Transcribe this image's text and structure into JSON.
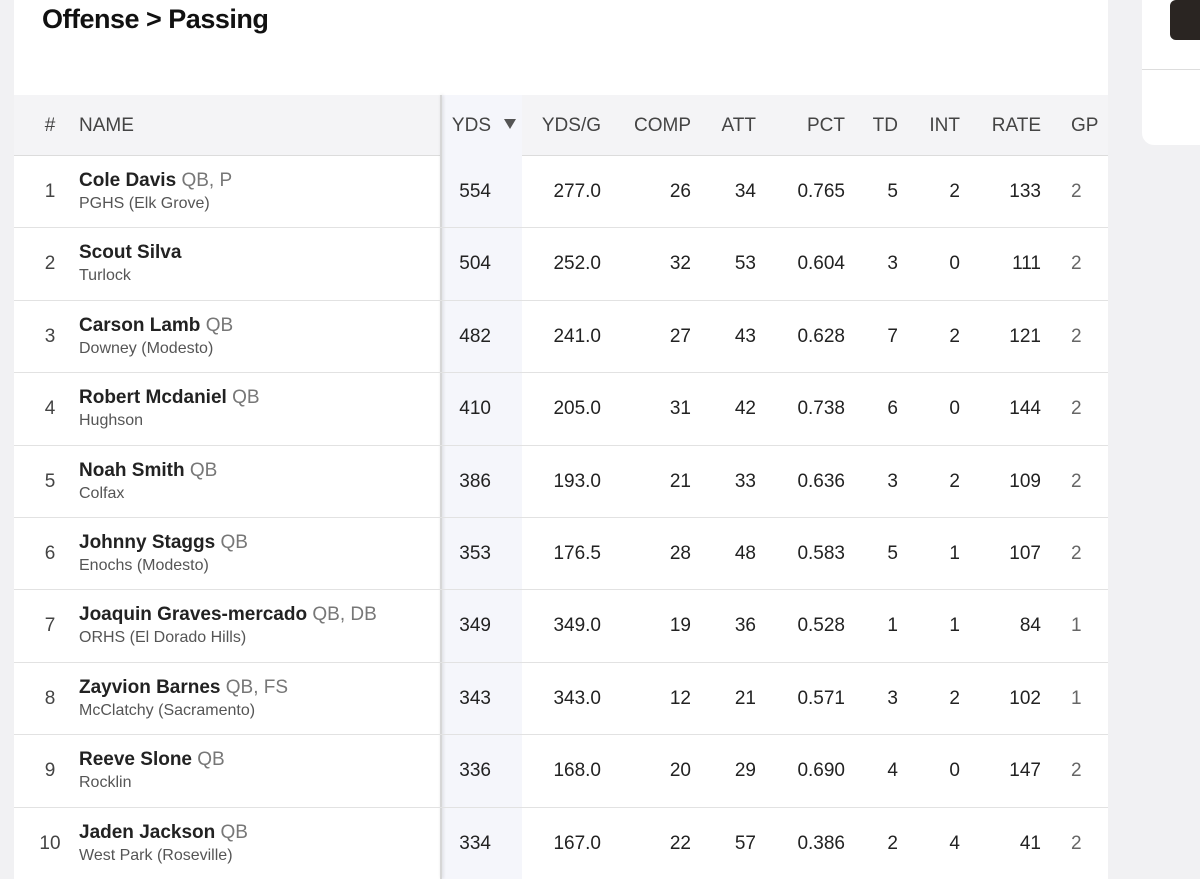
{
  "header": {
    "title": "Offense > Passing"
  },
  "table": {
    "columns": [
      "#",
      "NAME",
      "YDS",
      "YDS/G",
      "COMP",
      "ATT",
      "PCT",
      "TD",
      "INT",
      "RATE",
      "GP"
    ],
    "rows": [
      {
        "rank": 1,
        "name": "Cole Davis",
        "position": "QB, P",
        "school": "PGHS (Elk Grove)",
        "stats": [
          554,
          "277.0",
          26,
          34,
          "0.765",
          5,
          2,
          133,
          2
        ]
      },
      {
        "rank": 2,
        "name": "Scout Silva",
        "school": "Turlock",
        "stats": [
          504,
          "252.0",
          32,
          53,
          "0.604",
          3,
          0,
          111,
          2
        ]
      },
      {
        "rank": 3,
        "name": "Carson Lamb",
        "position": "QB",
        "school": "Downey (Modesto)",
        "stats": [
          482,
          "241.0",
          27,
          43,
          "0.628",
          7,
          2,
          121,
          2
        ]
      },
      {
        "rank": 4,
        "name": "Robert Mcdaniel",
        "position": "QB",
        "school": "Hughson",
        "stats": [
          410,
          "205.0",
          31,
          42,
          "0.738",
          6,
          0,
          144,
          2
        ]
      },
      {
        "rank": 5,
        "name": "Noah Smith",
        "position": "QB",
        "school": "Colfax",
        "stats": [
          386,
          "193.0",
          21,
          33,
          "0.636",
          3,
          2,
          109,
          2
        ]
      },
      {
        "rank": 6,
        "name": "Johnny Staggs",
        "position": "QB",
        "school": "Enochs (Modesto)",
        "stats": [
          353,
          "176.5",
          28,
          48,
          "0.583",
          5,
          1,
          107,
          2
        ]
      },
      {
        "rank": 7,
        "name": "Joaquin Graves-mercado",
        "position": "QB, DB",
        "school": "ORHS (El Dorado Hills)",
        "stats": [
          349,
          "349.0",
          19,
          36,
          "0.528",
          1,
          1,
          84,
          1
        ]
      },
      {
        "rank": 8,
        "name": "Zayvion Barnes",
        "position": "QB, FS",
        "school": "McClatchy (Sacramento)",
        "stats": [
          343,
          "343.0",
          12,
          21,
          "0.571",
          3,
          2,
          102,
          1
        ]
      },
      {
        "rank": 9,
        "name": "Reeve Slone",
        "position": "QB",
        "school": "Rocklin",
        "stats": [
          336,
          "168.0",
          20,
          29,
          "0.690",
          4,
          0,
          147,
          2
        ]
      },
      {
        "rank": 10,
        "name": "Jaden Jackson",
        "position": "QB",
        "school": "West Park (Roseville)",
        "stats": [
          334,
          "167.0",
          22,
          57,
          "0.386",
          2,
          4,
          41,
          2
        ]
      }
    ]
  }
}
